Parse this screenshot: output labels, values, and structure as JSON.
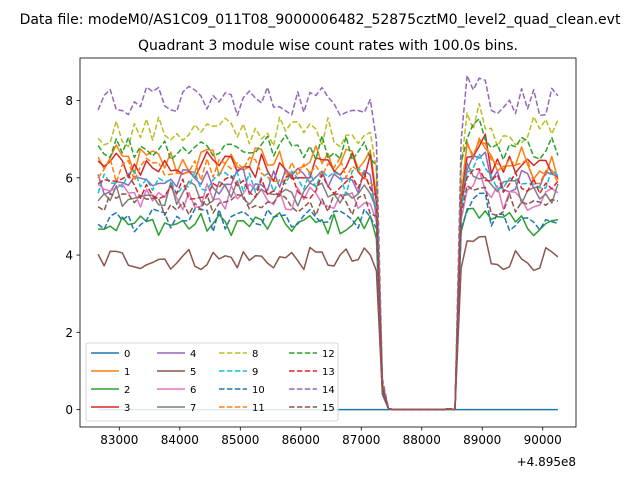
{
  "figure": {
    "suptitle": "Data file: modeM0/AS1C09_011T08_9000006482_52875cztM0_level2_quad_clean.evt",
    "title": "Quadrant 3 module wise count rates with 100.0s bins."
  },
  "chart_data": {
    "type": "line",
    "title": "Quadrant 3 module wise count rates with 100.0s bins.",
    "xlabel": "",
    "ylabel": "",
    "x_offset_label": "+4.895e8",
    "x_offset": 489500000,
    "xlim": [
      82350,
      90550
    ],
    "ylim": [
      -0.45,
      9.1
    ],
    "xticks": [
      83000,
      84000,
      85000,
      86000,
      87000,
      88000,
      89000,
      90000
    ],
    "yticks": [
      0,
      2,
      4,
      6,
      8
    ],
    "grid": false,
    "legend": {
      "placement": "lower-left",
      "columns": 4
    },
    "x_start": 82650,
    "x_step": 100,
    "num_points": 77,
    "gap_points": [
      48,
      49,
      50,
      51,
      52,
      53,
      54,
      55,
      56,
      57,
      58,
      59
    ],
    "gap_edge_values": {
      "47": 0.6,
      "48": 0.02,
      "58": 0.02
    },
    "series": [
      {
        "name": "0",
        "color": "#1f77b4",
        "dash": "solid",
        "mean": 0.0,
        "amp": 0.0,
        "edge_value": 0.0
      },
      {
        "name": "1",
        "color": "#ff7f0e",
        "dash": "solid",
        "mean": 6.4,
        "amp": 0.45,
        "edge_value": 5.5
      },
      {
        "name": "2",
        "color": "#2ca02c",
        "dash": "solid",
        "mean": 4.8,
        "amp": 0.3,
        "edge_value": 4.5
      },
      {
        "name": "3",
        "color": "#d62728",
        "dash": "solid",
        "mean": 6.3,
        "amp": 0.4,
        "edge_value": 5.4
      },
      {
        "name": "4",
        "color": "#9467bd",
        "dash": "solid",
        "mean": 5.9,
        "amp": 0.35,
        "edge_value": 5.1
      },
      {
        "name": "5",
        "color": "#8c564b",
        "dash": "solid",
        "mean": 3.9,
        "amp": 0.3,
        "edge_value": 3.6
      },
      {
        "name": "6",
        "color": "#e377c2",
        "dash": "solid",
        "mean": 5.5,
        "amp": 0.35,
        "edge_value": 5.0
      },
      {
        "name": "7",
        "color": "#7f7f7f",
        "dash": "solid",
        "mean": 5.6,
        "amp": 0.35,
        "edge_value": 5.2
      },
      {
        "name": "8",
        "color": "#bcbd22",
        "dash": "dashed",
        "mean": 7.2,
        "amp": 0.4,
        "edge_value": 6.2
      },
      {
        "name": "9",
        "color": "#17becf",
        "dash": "dashed",
        "mean": 5.9,
        "amp": 0.35,
        "edge_value": 5.3
      },
      {
        "name": "10",
        "color": "#1f77b4",
        "dash": "dashed",
        "mean": 4.9,
        "amp": 0.3,
        "edge_value": 4.7
      },
      {
        "name": "11",
        "color": "#ff7f0e",
        "dash": "dashed",
        "mean": 6.2,
        "amp": 0.35,
        "edge_value": 5.6
      },
      {
        "name": "12",
        "color": "#2ca02c",
        "dash": "dashed",
        "mean": 6.8,
        "amp": 0.35,
        "edge_value": 6.3
      },
      {
        "name": "13",
        "color": "#d62728",
        "dash": "dashed",
        "mean": 5.8,
        "amp": 0.35,
        "edge_value": 5.5
      },
      {
        "name": "14",
        "color": "#9467bd",
        "dash": "dashed",
        "mean": 8.0,
        "amp": 0.4,
        "edge_value": 7.0
      },
      {
        "name": "15",
        "color": "#8c564b",
        "dash": "dashed",
        "mean": 5.3,
        "amp": 0.3,
        "edge_value": 5.0
      }
    ]
  }
}
